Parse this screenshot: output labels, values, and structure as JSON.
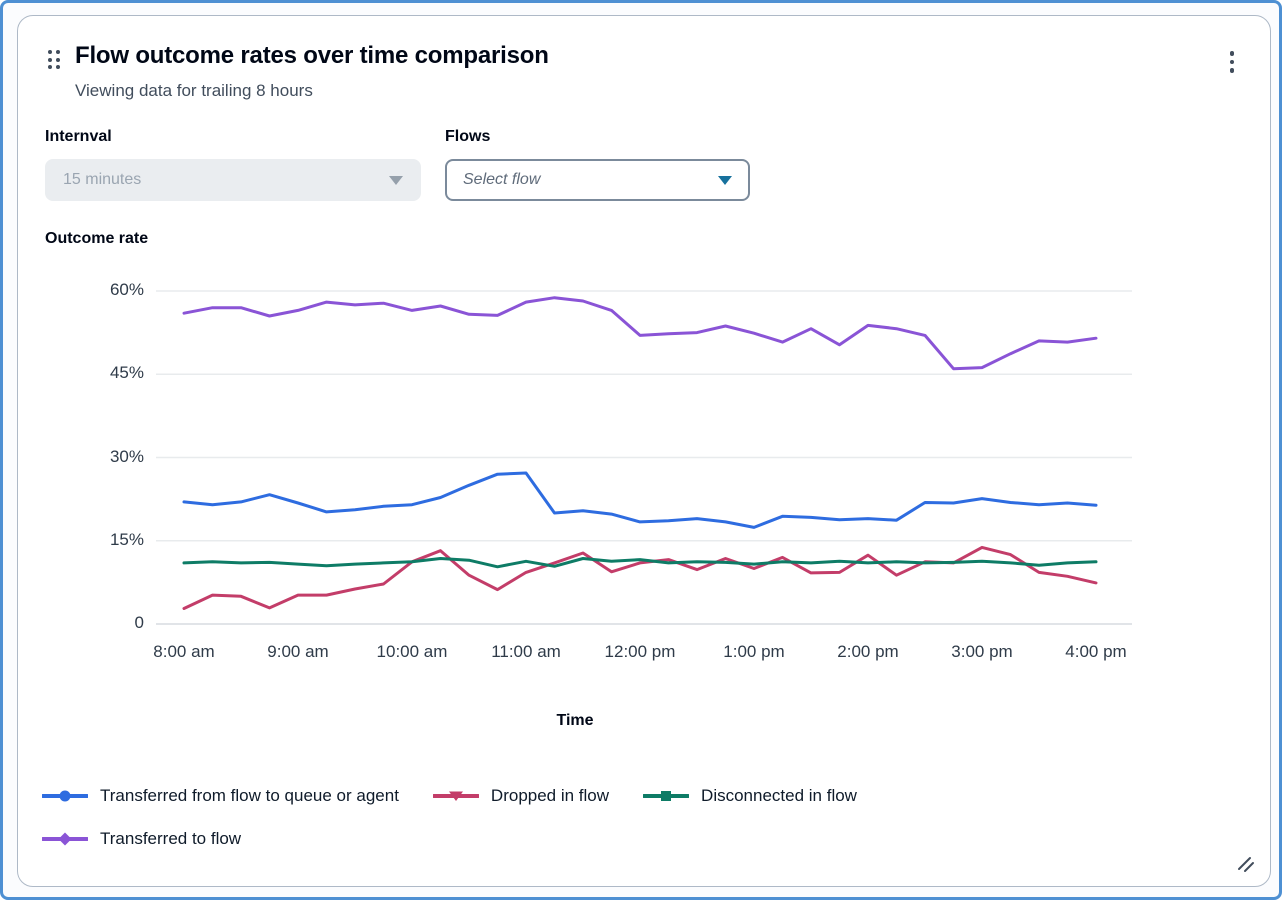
{
  "card": {
    "title": "Flow outcome rates over time comparison",
    "subtitle": "Viewing data for trailing 8 hours"
  },
  "filters": {
    "interval": {
      "label": "Internval",
      "value": "15 minutes",
      "state": "disabled"
    },
    "flows": {
      "label": "Flows",
      "placeholder": "Select flow",
      "state": "enabled"
    }
  },
  "ui_colors": {
    "accent_caret": "#17719d",
    "disabled_caret": "#95a0ab",
    "icon": "#414d5c",
    "gridline": "#e8ebed",
    "baseline": "#d7dbe0"
  },
  "chart_data": {
    "type": "line",
    "title": "Outcome rate",
    "ylabel": "Outcome rate",
    "xlabel": "Time",
    "ylim": [
      0,
      60
    ],
    "grid": "horizontal-only",
    "legend_position": "bottom",
    "y_ticks": [
      "60%",
      "45%",
      "30%",
      "15%",
      "0"
    ],
    "y_tick_values": [
      60,
      45,
      30,
      15,
      0
    ],
    "x_ticks": [
      "8:00 am",
      "9:00 am",
      "10:00 am",
      "11:00 am",
      "12:00 pm",
      "1:00 pm",
      "2:00 pm",
      "3:00 pm",
      "4:00 pm"
    ],
    "x_interval_minutes": 15,
    "series": [
      {
        "name": "Transferred from flow to queue or agent",
        "color": "#2e6ce0",
        "marker": "circle",
        "values": [
          22.0,
          21.5,
          22.0,
          23.3,
          21.8,
          20.2,
          20.6,
          21.2,
          21.5,
          22.8,
          25.0,
          27.0,
          27.2,
          20.0,
          20.4,
          19.8,
          18.4,
          18.6,
          19.0,
          18.4,
          17.4,
          19.4,
          19.2,
          18.8,
          19.0,
          18.7,
          21.9,
          21.8,
          22.6,
          21.9,
          21.5,
          21.8,
          21.4
        ]
      },
      {
        "name": "Dropped in flow",
        "color": "#c33d69",
        "marker": "triangle-down",
        "values": [
          2.8,
          5.2,
          5.0,
          2.9,
          5.2,
          5.2,
          6.3,
          7.2,
          11.2,
          13.2,
          8.8,
          6.2,
          9.3,
          11.0,
          12.8,
          9.4,
          11.0,
          11.6,
          9.8,
          11.8,
          10.0,
          12.0,
          9.2,
          9.3,
          12.4,
          8.8,
          11.2,
          11.0,
          13.8,
          12.5,
          9.3,
          8.6,
          7.4
        ]
      },
      {
        "name": "Disconnected in flow",
        "color": "#0e7c66",
        "marker": "square",
        "values": [
          11.0,
          11.2,
          11.0,
          11.1,
          10.8,
          10.5,
          10.8,
          11.0,
          11.2,
          11.8,
          11.5,
          10.3,
          11.3,
          10.4,
          11.8,
          11.3,
          11.6,
          11.0,
          11.2,
          11.1,
          10.8,
          11.2,
          11.0,
          11.3,
          11.0,
          11.2,
          11.0,
          11.1,
          11.3,
          11.0,
          10.6,
          11.0,
          11.2
        ]
      },
      {
        "name": "Transferred to flow",
        "color": "#8a54d6",
        "marker": "diamond",
        "values": [
          56.0,
          57.0,
          57.0,
          55.5,
          56.5,
          58.0,
          57.5,
          57.8,
          56.5,
          57.3,
          55.8,
          55.6,
          58.0,
          58.8,
          58.2,
          56.5,
          52.0,
          52.3,
          52.5,
          53.7,
          52.4,
          50.8,
          53.2,
          50.3,
          53.8,
          53.2,
          52.0,
          46.0,
          46.2,
          48.7,
          51.0,
          50.8,
          51.5
        ]
      }
    ]
  }
}
